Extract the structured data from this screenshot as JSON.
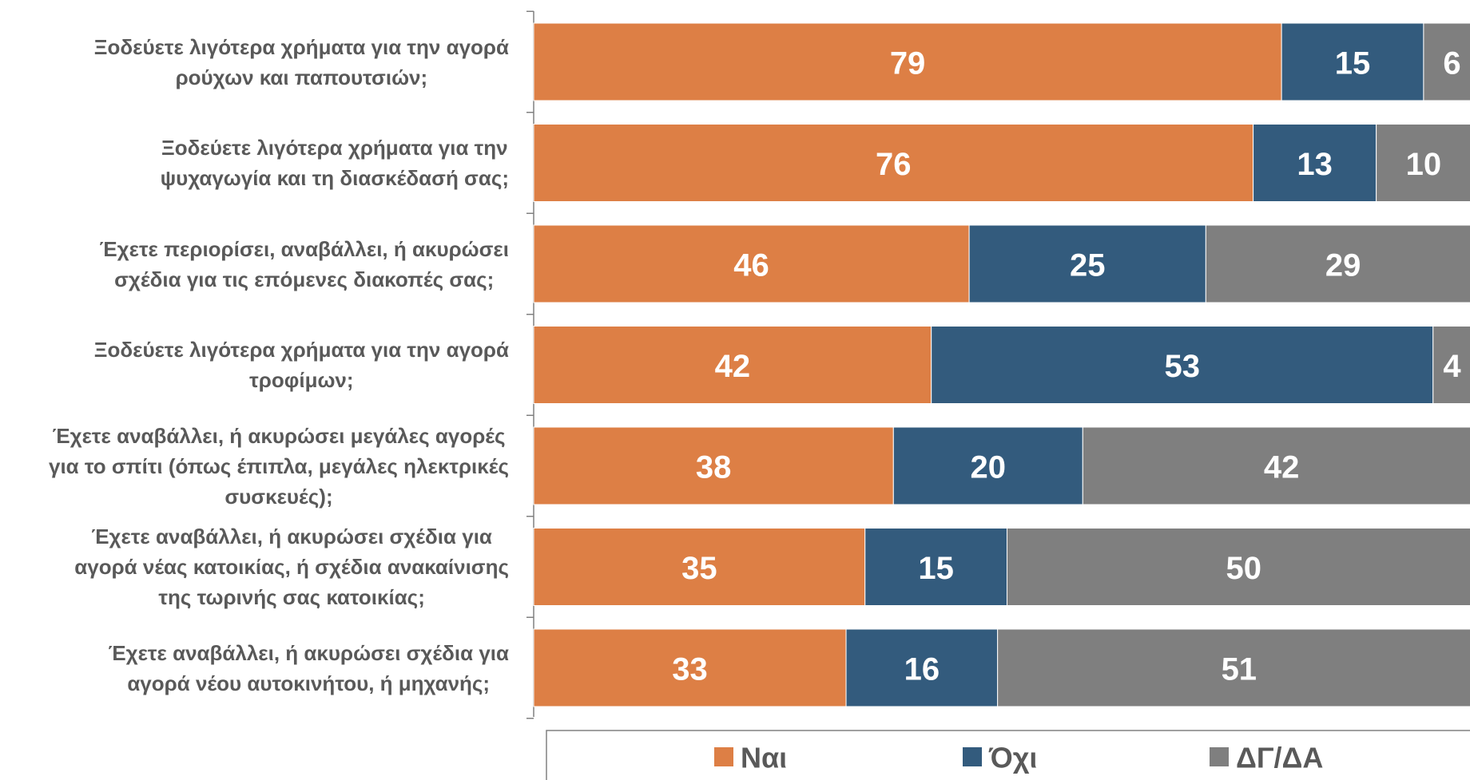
{
  "chart_data": {
    "type": "stacked_bar_horizontal",
    "categories": [
      "Ξοδεύετε λιγότερα χρήματα για την αγορά\nρούχων και παπουτσιών;",
      "Ξοδεύετε λιγότερα χρήματα για την\nψυχαγωγία και τη διασκέδασή σας;",
      "Έχετε περιορίσει, αναβάλλει, ή ακυρώσει\nσχέδια για τις επόμενες διακοπές σας;",
      "Ξοδεύετε λιγότερα χρήματα για την αγορά\nτροφίμων;",
      "Έχετε αναβάλλει, ή ακυρώσει μεγάλες αγορές\nγια το σπίτι (όπως έπιπλα, μεγάλες ηλεκτρικές\nσυσκευές);",
      "Έχετε αναβάλλει, ή ακυρώσει σχέδια για\nαγορά νέας κατοικίας, ή σχέδια ανακαίνισης\nτης τωρινής σας κατοικίας;",
      "Έχετε αναβάλλει, ή ακυρώσει σχέδια για\nαγορά νέου αυτοκινήτου, ή μηχανής;"
    ],
    "series": [
      {
        "name": "Ναι",
        "color": "#dd7f45",
        "values": [
          79,
          76,
          46,
          42,
          38,
          35,
          33
        ]
      },
      {
        "name": "Όχι",
        "color": "#335b7d",
        "values": [
          15,
          13,
          25,
          53,
          20,
          15,
          16
        ]
      },
      {
        "name": "ΔΓ/ΔΑ",
        "color": "#7f7f7f",
        "values": [
          6,
          10,
          29,
          4,
          42,
          50,
          51
        ]
      }
    ],
    "xlim": [
      0,
      100
    ]
  }
}
